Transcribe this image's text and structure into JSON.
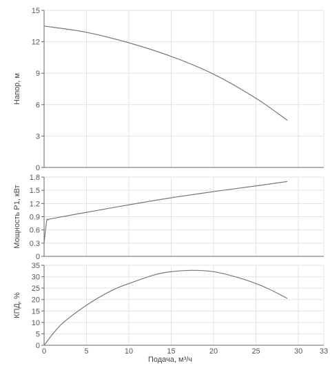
{
  "chart_data": [
    {
      "type": "line",
      "ylabel": "Напор, м",
      "xlabel": "",
      "xlim": [
        0,
        33
      ],
      "ylim": [
        0,
        15
      ],
      "x_ticks": [
        0,
        5,
        10,
        15,
        20,
        25,
        30,
        33
      ],
      "y_ticks": [
        0,
        3,
        6,
        9,
        12,
        15
      ],
      "grid": true,
      "series": [
        {
          "x": [
            0,
            5,
            10,
            15,
            20,
            25,
            28.7
          ],
          "y": [
            13.5,
            12.9,
            11.9,
            10.6,
            8.9,
            6.6,
            4.5
          ]
        }
      ]
    },
    {
      "type": "line",
      "ylabel": "Мощность Р1, кВт",
      "xlabel": "",
      "xlim": [
        0,
        33
      ],
      "ylim": [
        0,
        1.8
      ],
      "x_ticks": [
        0,
        5,
        10,
        15,
        20,
        25,
        30,
        33
      ],
      "y_ticks": [
        0,
        0.3,
        0.6,
        0.9,
        1.2,
        1.5,
        1.8
      ],
      "grid": true,
      "series": [
        {
          "x": [
            0,
            0.3,
            0.5,
            1,
            5,
            10,
            15,
            20,
            25,
            28.7
          ],
          "y": [
            0.3,
            0.8,
            0.83,
            0.86,
            1.0,
            1.17,
            1.33,
            1.47,
            1.6,
            1.7
          ]
        }
      ]
    },
    {
      "type": "line",
      "ylabel": "КПД, %",
      "xlabel": "Подача, м³/ч",
      "xlim": [
        0,
        33
      ],
      "ylim": [
        0,
        35
      ],
      "x_ticks": [
        0,
        5,
        10,
        15,
        20,
        25,
        30,
        33
      ],
      "y_ticks": [
        0,
        5,
        10,
        15,
        20,
        25,
        30,
        35
      ],
      "grid": true,
      "series": [
        {
          "x": [
            0,
            2,
            5,
            8,
            10,
            13,
            15,
            17.5,
            20,
            23,
            26,
            28.7
          ],
          "y": [
            0,
            9,
            17.5,
            24,
            27,
            30.8,
            32.2,
            32.8,
            32.2,
            29.5,
            25.5,
            20.5
          ]
        }
      ]
    }
  ]
}
